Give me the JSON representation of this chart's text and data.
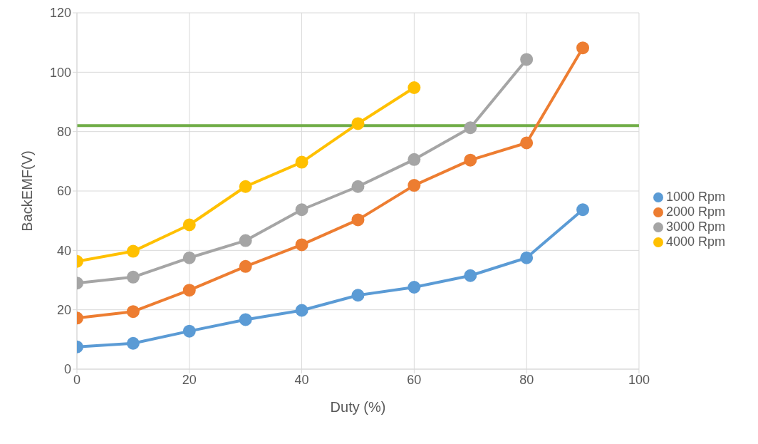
{
  "chart_data": {
    "type": "line",
    "xlabel": "Duty (%)",
    "ylabel": "BackEMF(V)",
    "xlim": [
      0,
      100
    ],
    "xticks": [
      0,
      20,
      40,
      60,
      80,
      100
    ],
    "ylim": [
      0,
      120
    ],
    "yticks": [
      0,
      20,
      40,
      60,
      80,
      100,
      120
    ],
    "grid": true,
    "legend": "right",
    "marker": "circle",
    "line_style": "solid",
    "series": [
      {
        "name": "1000 Rpm",
        "color": "#5b9bd5",
        "x": [
          0,
          10,
          20,
          30,
          40,
          50,
          60,
          70,
          80,
          90
        ],
        "values": [
          7.5,
          8.7,
          12.8,
          16.7,
          19.8,
          24.9,
          27.6,
          31.5,
          37.5,
          53.7
        ]
      },
      {
        "name": "2000 Rpm",
        "color": "#ed7d31",
        "x": [
          0,
          10,
          20,
          30,
          40,
          50,
          60,
          70,
          80,
          90
        ],
        "values": [
          17.2,
          19.4,
          26.6,
          34.6,
          41.9,
          50.3,
          61.9,
          70.4,
          76.2,
          108.2
        ]
      },
      {
        "name": "3000 Rpm",
        "color": "#a5a5a5",
        "x": [
          0,
          10,
          20,
          30,
          40,
          50,
          60,
          70,
          80
        ],
        "values": [
          29,
          31,
          37.5,
          43.3,
          53.7,
          61.5,
          70.6,
          81.3,
          104.3
        ]
      },
      {
        "name": "4000 Rpm",
        "color": "#ffc000",
        "x": [
          0,
          10,
          20,
          30,
          40,
          50,
          60
        ],
        "values": [
          36.3,
          39.7,
          48.6,
          61.5,
          69.7,
          82.7,
          94.8
        ]
      }
    ],
    "ref_lines": [
      {
        "axis": "y",
        "value": 82,
        "color": "#70ad47",
        "line_style": "solid"
      }
    ]
  }
}
